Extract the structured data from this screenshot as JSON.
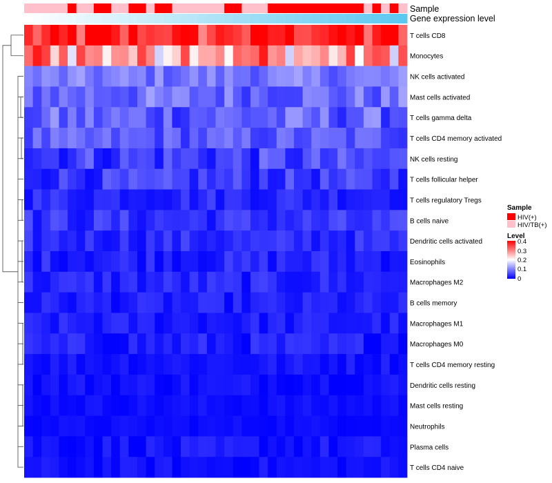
{
  "chart_data": {
    "type": "heatmap",
    "annotation_tracks": [
      "Sample",
      "Gene expression level"
    ],
    "rows": [
      "T cells CD8",
      "Monocytes",
      "NK cells activated",
      "Mast cells activated",
      "T cells gamma delta",
      "T cells CD4 memory activated",
      "NK cells resting",
      "T cells follicular helper",
      "T cells regulatory  Tregs",
      "B cells naive",
      "Dendritic cells activated",
      "Eosinophils",
      "Macrophages M2",
      "B cells memory",
      "Macrophages M1",
      "Macrophages M0",
      "T cells CD4 memory resting",
      "Dendritic cells resting",
      "Mast cells resting",
      "Neutrophils",
      "Plasma cells",
      "T cells CD4 naive"
    ],
    "n_samples": 44,
    "sample_groups": [
      "HIV/TB(+)",
      "HIV/TB(+)",
      "HIV/TB(+)",
      "HIV/TB(+)",
      "HIV/TB(+)",
      "HIV(+)",
      "HIV/TB(+)",
      "HIV/TB(+)",
      "HIV(+)",
      "HIV(+)",
      "HIV/TB(+)",
      "HIV/TB(+)",
      "HIV(+)",
      "HIV(+)",
      "HIV/TB(+)",
      "HIV(+)",
      "HIV(+)",
      "HIV/TB(+)",
      "HIV/TB(+)",
      "HIV/TB(+)",
      "HIV/TB(+)",
      "HIV/TB(+)",
      "HIV/TB(+)",
      "HIV(+)",
      "HIV(+)",
      "HIV/TB(+)",
      "HIV/TB(+)",
      "HIV/TB(+)",
      "HIV(+)",
      "HIV(+)",
      "HIV(+)",
      "HIV(+)",
      "HIV(+)",
      "HIV(+)",
      "HIV(+)",
      "HIV(+)",
      "HIV(+)",
      "HIV(+)",
      "HIV(+)",
      "HIV/TB(+)",
      "HIV(+)",
      "HIV/TB(+)",
      "HIV(+)",
      "HIV/TB(+)"
    ],
    "row_means": [
      0.34,
      0.25,
      0.09,
      0.08,
      0.07,
      0.065,
      0.045,
      0.04,
      0.03,
      0.035,
      0.03,
      0.025,
      0.025,
      0.02,
      0.02,
      0.02,
      0.015,
      0.012,
      0.01,
      0.008,
      0.012,
      0.01
    ],
    "row_spread": [
      0.07,
      0.1,
      0.035,
      0.045,
      0.05,
      0.035,
      0.045,
      0.035,
      0.025,
      0.03,
      0.025,
      0.025,
      0.025,
      0.02,
      0.02,
      0.025,
      0.015,
      0.015,
      0.01,
      0.008,
      0.02,
      0.015
    ],
    "legend": {
      "sample": {
        "title": "Sample",
        "items": [
          {
            "label": "HIV(+)",
            "color": "#ff0000"
          },
          {
            "label": "HIV/TB(+)",
            "color": "#ffc0cb"
          }
        ]
      },
      "level": {
        "title": "Level",
        "ticks": [
          "0.4",
          "0.3",
          "0.2",
          "0.1",
          "0"
        ],
        "min": 0,
        "max": 0.4
      }
    },
    "colors": {
      "low": "#0000ff",
      "mid": "#ffffff",
      "high": "#ff0000",
      "annotation_start": "#ffffff",
      "annotation_end": "#5bc8f0"
    }
  }
}
